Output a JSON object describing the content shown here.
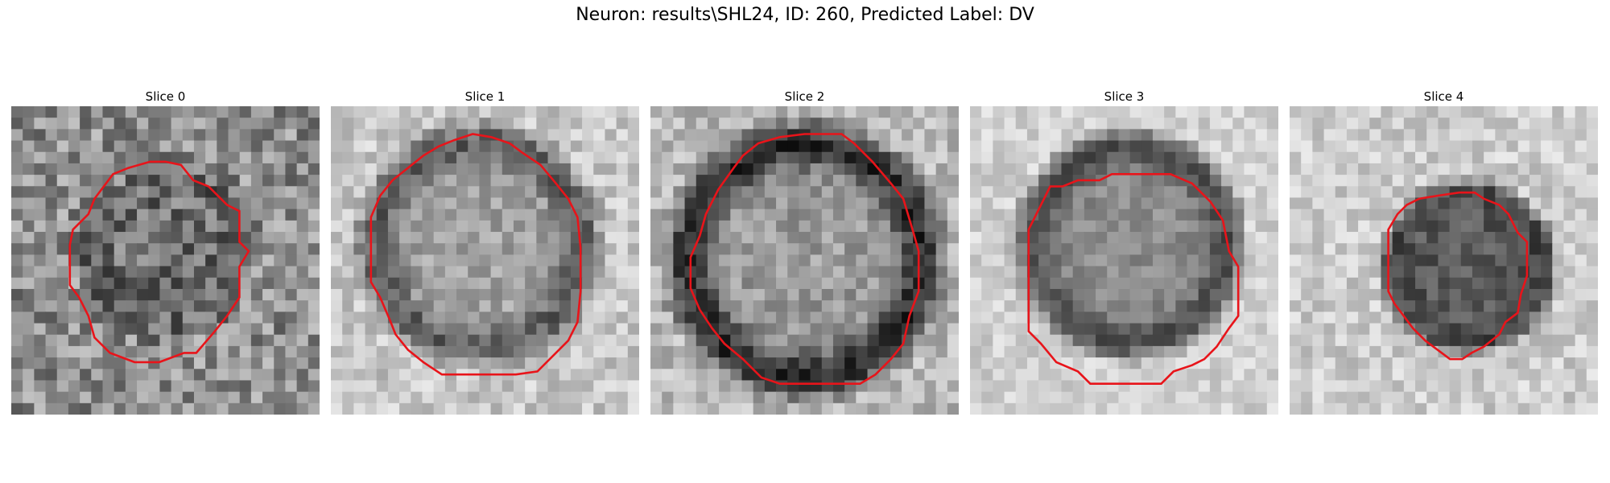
{
  "figure": {
    "title": "Neuron: results\\SHL24, ID: 260, Predicted Label: DV"
  },
  "style": {
    "contour_color": "#e8141a"
  },
  "panels": [
    {
      "title": "Slice 0",
      "image": {
        "base_gray": 0.55,
        "noise": 0.22,
        "darkness": 0.15,
        "blob_center": [
          0.5,
          0.48
        ],
        "blob_radius": 0.26,
        "ring": 0.2,
        "seed": 11
      },
      "contour": [
        [
          0.33,
          0.22
        ],
        [
          0.38,
          0.2
        ],
        [
          0.45,
          0.18
        ],
        [
          0.5,
          0.18
        ],
        [
          0.55,
          0.19
        ],
        [
          0.59,
          0.24
        ],
        [
          0.64,
          0.26
        ],
        [
          0.7,
          0.32
        ],
        [
          0.74,
          0.34
        ],
        [
          0.74,
          0.44
        ],
        [
          0.77,
          0.47
        ],
        [
          0.74,
          0.52
        ],
        [
          0.74,
          0.62
        ],
        [
          0.7,
          0.68
        ],
        [
          0.66,
          0.73
        ],
        [
          0.6,
          0.8
        ],
        [
          0.56,
          0.8
        ],
        [
          0.48,
          0.83
        ],
        [
          0.4,
          0.83
        ],
        [
          0.32,
          0.8
        ],
        [
          0.27,
          0.75
        ],
        [
          0.25,
          0.68
        ],
        [
          0.22,
          0.62
        ],
        [
          0.19,
          0.58
        ],
        [
          0.19,
          0.45
        ],
        [
          0.2,
          0.4
        ],
        [
          0.25,
          0.35
        ],
        [
          0.27,
          0.3
        ],
        [
          0.3,
          0.26
        ]
      ]
    },
    {
      "title": "Slice 1",
      "image": {
        "base_gray": 0.78,
        "noise": 0.13,
        "darkness": 0.35,
        "blob_center": [
          0.48,
          0.45
        ],
        "blob_radius": 0.36,
        "ring": 0.6,
        "seed": 23
      },
      "contour": [
        [
          0.35,
          0.13
        ],
        [
          0.4,
          0.11
        ],
        [
          0.46,
          0.09
        ],
        [
          0.52,
          0.1
        ],
        [
          0.58,
          0.12
        ],
        [
          0.62,
          0.15
        ],
        [
          0.68,
          0.19
        ],
        [
          0.73,
          0.25
        ],
        [
          0.77,
          0.3
        ],
        [
          0.8,
          0.36
        ],
        [
          0.81,
          0.46
        ],
        [
          0.81,
          0.6
        ],
        [
          0.8,
          0.7
        ],
        [
          0.77,
          0.76
        ],
        [
          0.72,
          0.81
        ],
        [
          0.67,
          0.86
        ],
        [
          0.6,
          0.87
        ],
        [
          0.47,
          0.87
        ],
        [
          0.36,
          0.87
        ],
        [
          0.3,
          0.83
        ],
        [
          0.25,
          0.79
        ],
        [
          0.21,
          0.74
        ],
        [
          0.19,
          0.69
        ],
        [
          0.16,
          0.62
        ],
        [
          0.13,
          0.57
        ],
        [
          0.13,
          0.36
        ],
        [
          0.16,
          0.29
        ],
        [
          0.2,
          0.24
        ],
        [
          0.25,
          0.2
        ],
        [
          0.3,
          0.16
        ]
      ]
    },
    {
      "title": "Slice 2",
      "image": {
        "base_gray": 0.72,
        "noise": 0.14,
        "darkness": 0.45,
        "blob_center": [
          0.5,
          0.5
        ],
        "blob_radius": 0.41,
        "ring": 0.75,
        "seed": 37
      },
      "contour": [
        [
          0.35,
          0.12
        ],
        [
          0.42,
          0.1
        ],
        [
          0.5,
          0.09
        ],
        [
          0.62,
          0.09
        ],
        [
          0.66,
          0.12
        ],
        [
          0.72,
          0.18
        ],
        [
          0.78,
          0.25
        ],
        [
          0.82,
          0.3
        ],
        [
          0.85,
          0.4
        ],
        [
          0.87,
          0.47
        ],
        [
          0.87,
          0.6
        ],
        [
          0.84,
          0.68
        ],
        [
          0.82,
          0.77
        ],
        [
          0.78,
          0.82
        ],
        [
          0.73,
          0.87
        ],
        [
          0.68,
          0.9
        ],
        [
          0.6,
          0.9
        ],
        [
          0.5,
          0.9
        ],
        [
          0.42,
          0.9
        ],
        [
          0.36,
          0.88
        ],
        [
          0.3,
          0.82
        ],
        [
          0.24,
          0.77
        ],
        [
          0.2,
          0.72
        ],
        [
          0.16,
          0.66
        ],
        [
          0.13,
          0.59
        ],
        [
          0.13,
          0.49
        ],
        [
          0.16,
          0.42
        ],
        [
          0.18,
          0.35
        ],
        [
          0.22,
          0.27
        ],
        [
          0.27,
          0.2
        ],
        [
          0.3,
          0.16
        ]
      ]
    },
    {
      "title": "Slice 3",
      "image": {
        "base_gray": 0.82,
        "noise": 0.1,
        "darkness": 0.45,
        "blob_center": [
          0.52,
          0.45
        ],
        "blob_radius": 0.34,
        "ring": 0.4,
        "seed": 52
      },
      "contour": [
        [
          0.26,
          0.26
        ],
        [
          0.3,
          0.26
        ],
        [
          0.35,
          0.24
        ],
        [
          0.42,
          0.24
        ],
        [
          0.46,
          0.22
        ],
        [
          0.55,
          0.22
        ],
        [
          0.65,
          0.22
        ],
        [
          0.72,
          0.25
        ],
        [
          0.78,
          0.31
        ],
        [
          0.82,
          0.37
        ],
        [
          0.84,
          0.47
        ],
        [
          0.87,
          0.52
        ],
        [
          0.87,
          0.68
        ],
        [
          0.84,
          0.72
        ],
        [
          0.8,
          0.78
        ],
        [
          0.76,
          0.82
        ],
        [
          0.72,
          0.84
        ],
        [
          0.66,
          0.86
        ],
        [
          0.62,
          0.9
        ],
        [
          0.5,
          0.9
        ],
        [
          0.39,
          0.9
        ],
        [
          0.35,
          0.86
        ],
        [
          0.28,
          0.83
        ],
        [
          0.23,
          0.77
        ],
        [
          0.19,
          0.73
        ],
        [
          0.19,
          0.57
        ],
        [
          0.19,
          0.4
        ],
        [
          0.22,
          0.34
        ]
      ]
    },
    {
      "title": "Slice 4",
      "image": {
        "base_gray": 0.8,
        "noise": 0.12,
        "darkness": 0.5,
        "blob_center": [
          0.58,
          0.52
        ],
        "blob_radius": 0.26,
        "ring": 0.1,
        "seed": 68
      },
      "contour": [
        [
          0.38,
          0.32
        ],
        [
          0.42,
          0.3
        ],
        [
          0.48,
          0.29
        ],
        [
          0.55,
          0.28
        ],
        [
          0.6,
          0.28
        ],
        [
          0.63,
          0.3
        ],
        [
          0.68,
          0.32
        ],
        [
          0.71,
          0.35
        ],
        [
          0.74,
          0.41
        ],
        [
          0.77,
          0.44
        ],
        [
          0.77,
          0.55
        ],
        [
          0.75,
          0.61
        ],
        [
          0.74,
          0.67
        ],
        [
          0.7,
          0.7
        ],
        [
          0.68,
          0.74
        ],
        [
          0.63,
          0.78
        ],
        [
          0.59,
          0.8
        ],
        [
          0.56,
          0.82
        ],
        [
          0.52,
          0.82
        ],
        [
          0.48,
          0.79
        ],
        [
          0.44,
          0.76
        ],
        [
          0.4,
          0.72
        ],
        [
          0.37,
          0.68
        ],
        [
          0.34,
          0.64
        ],
        [
          0.32,
          0.6
        ],
        [
          0.32,
          0.49
        ],
        [
          0.32,
          0.4
        ],
        [
          0.35,
          0.35
        ]
      ]
    }
  ]
}
